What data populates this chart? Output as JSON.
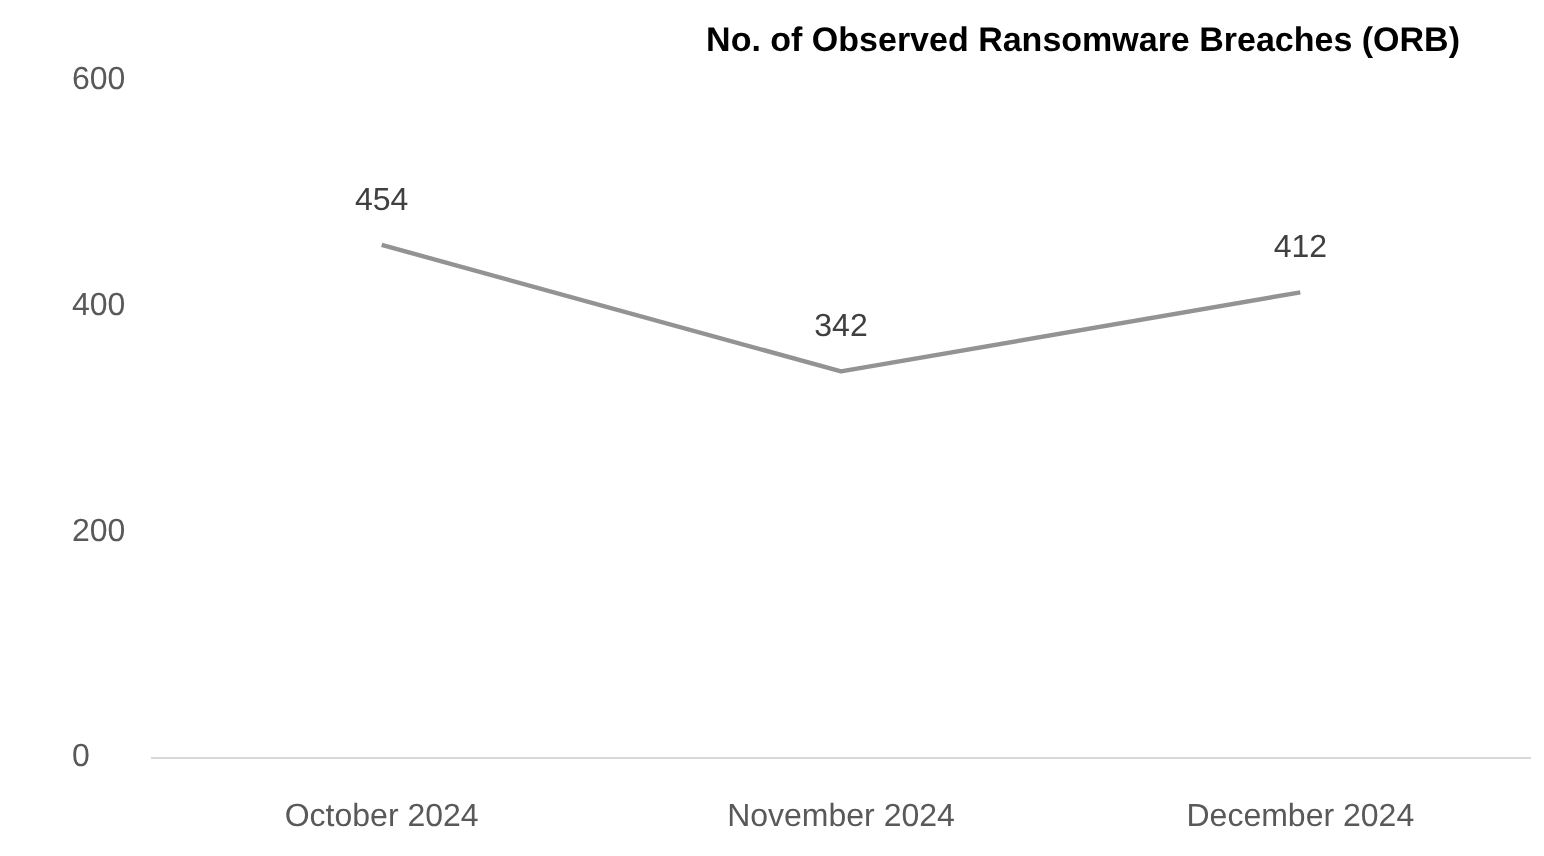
{
  "chart_data": {
    "type": "line",
    "title": "No. of Observed Ransomware Breaches (ORB)",
    "categories": [
      "October 2024",
      "November 2024",
      "December 2024"
    ],
    "series": [
      {
        "color": "#939393",
        "values": [
          454,
          342,
          412
        ]
      }
    ],
    "ylim": [
      0,
      600
    ],
    "yticks": [
      0,
      200,
      400,
      600
    ],
    "data_labels": true,
    "grid": false,
    "marker": "none"
  }
}
